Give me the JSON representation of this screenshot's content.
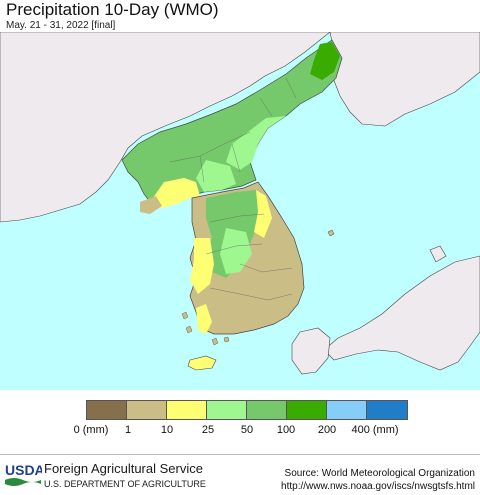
{
  "header": {
    "title": "Precipitation 10-Day (WMO)",
    "subtitle": "May. 21 - 31, 2022 [final]"
  },
  "legend": {
    "labels": [
      "0 (mm)",
      "1",
      "10",
      "25",
      "50",
      "100",
      "200",
      "400 (mm)"
    ],
    "colors": [
      "#86704b",
      "#cbbd86",
      "#ffff73",
      "#9ef78f",
      "#75c96a",
      "#3aab00",
      "#86cdf8",
      "#1f7ec7"
    ]
  },
  "footer": {
    "logo_text": "USDA",
    "agency": "Foreign Agricultural Service",
    "department": "U.S. DEPARTMENT OF AGRICULTURE",
    "source_line1": "Source: World Meteorological Organization",
    "source_line2": "http://www.nws.noaa.gov/iscs/nwsgtsfs.html"
  },
  "map_colors": {
    "ocean": "#c0ffff",
    "land_neutral": "#eeeaee",
    "border": "#444444"
  }
}
